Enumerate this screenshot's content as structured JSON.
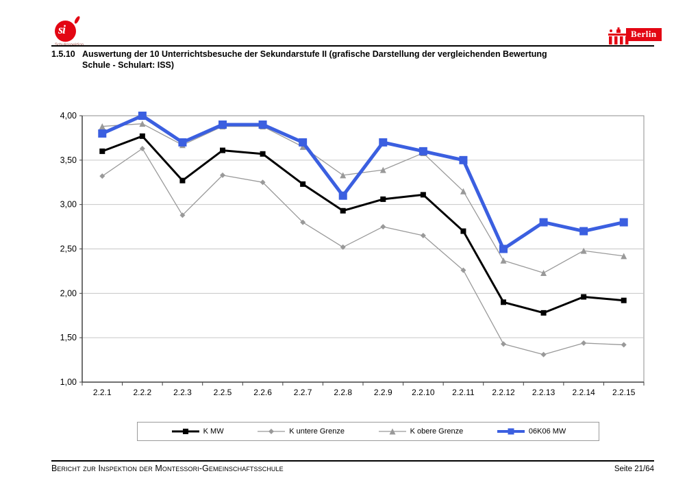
{
  "header": {
    "logo_left": {
      "text": "si",
      "subtext": "Schulinspektion"
    },
    "logo_right": {
      "label": "Berlin"
    }
  },
  "title": {
    "number": "1.5.10",
    "line1": "Auswertung der 10 Unterrichtsbesuche der Sekundarstufe II (grafische Darstellung der vergleichenden Bewertung",
    "line2": "Schule - Schulart: ISS)"
  },
  "chart_data": {
    "type": "line",
    "categories": [
      "2.2.1",
      "2.2.2",
      "2.2.3",
      "2.2.5",
      "2.2.6",
      "2.2.7",
      "2.2.8",
      "2.2.9",
      "2.2.10",
      "2.2.11",
      "2.2.12",
      "2.2.13",
      "2.2.14",
      "2.2.15"
    ],
    "series": [
      {
        "name": "K MW",
        "color": "#000000",
        "marker": "square",
        "line_width": 3,
        "marker_size": 8,
        "values": [
          3.6,
          3.77,
          3.27,
          3.61,
          3.57,
          3.23,
          2.93,
          3.06,
          3.11,
          2.7,
          1.9,
          1.78,
          1.96,
          1.92
        ]
      },
      {
        "name": "K untere Grenze",
        "color": "#999999",
        "marker": "diamond",
        "line_width": 1.3,
        "marker_size": 8,
        "values": [
          3.32,
          3.63,
          2.88,
          3.33,
          3.25,
          2.8,
          2.52,
          2.75,
          2.65,
          2.26,
          1.43,
          1.31,
          1.44,
          1.42
        ]
      },
      {
        "name": "K obere Grenze",
        "color": "#999999",
        "marker": "triangle",
        "line_width": 1.3,
        "marker_size": 9,
        "values": [
          3.88,
          3.91,
          3.67,
          3.88,
          3.88,
          3.65,
          3.33,
          3.39,
          3.58,
          3.15,
          2.37,
          2.23,
          2.48,
          2.42
        ]
      },
      {
        "name": "06K06 MW",
        "color": "#3b5fe0",
        "marker": "square",
        "line_width": 5,
        "marker_size": 12,
        "values": [
          3.8,
          4.0,
          3.7,
          3.9,
          3.9,
          3.7,
          3.1,
          3.7,
          3.6,
          3.5,
          2.5,
          2.8,
          2.7,
          2.8
        ]
      }
    ],
    "title": "",
    "xlabel": "",
    "ylabel": "",
    "ylim": [
      1.0,
      4.0
    ],
    "ytick_step": 0.5,
    "ytick_labels": [
      "1,00",
      "1,50",
      "2,00",
      "2,50",
      "3,00",
      "3,50",
      "4,00"
    ],
    "grid": true,
    "legend_position": "bottom"
  },
  "footer": {
    "left": "Bericht zur Inspektion der Montessori-Gemeinschaftsschule",
    "right": "Seite 21/64"
  }
}
